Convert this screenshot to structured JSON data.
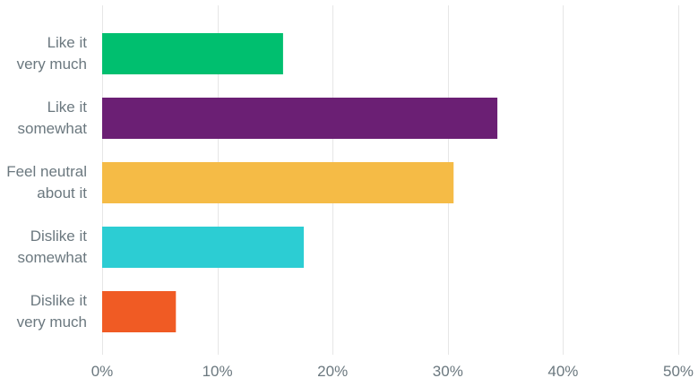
{
  "chart_data": {
    "type": "bar",
    "orientation": "horizontal",
    "categories": [
      [
        "Like it",
        "very much"
      ],
      [
        "Like it",
        "somewhat"
      ],
      [
        "Feel neutral",
        "about it"
      ],
      [
        "Dislike it",
        "somewhat"
      ],
      [
        "Dislike it",
        "very much"
      ]
    ],
    "values": [
      15.7,
      34.3,
      30.5,
      17.5,
      6.4
    ],
    "colors": [
      "#00bf6f",
      "#6b1f74",
      "#f5bb46",
      "#2ccdd3",
      "#f05b24"
    ],
    "xlim": [
      0,
      50
    ],
    "xticks": [
      0,
      10,
      20,
      30,
      40,
      50
    ],
    "xtick_labels": [
      "0%",
      "10%",
      "20%",
      "30%",
      "40%",
      "50%"
    ],
    "title": "",
    "xlabel": "",
    "ylabel": "",
    "grid": "vertical",
    "legend": "none"
  }
}
